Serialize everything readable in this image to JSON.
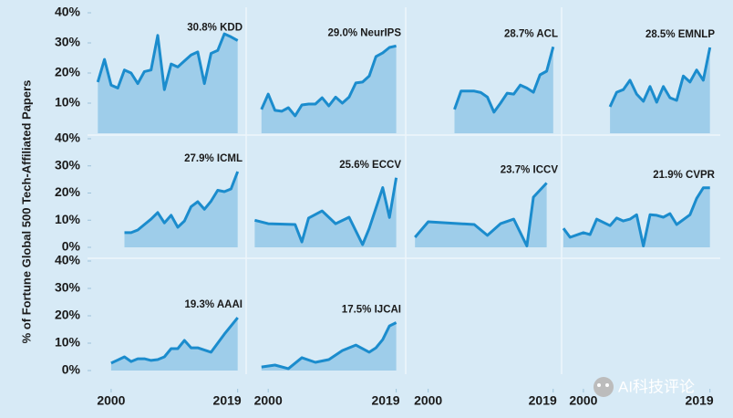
{
  "y_axis_label": "% of Fortune Global 500 Tech-Affiliated Papers",
  "watermark": "AI科技评论",
  "chart_data": [
    {
      "type": "area",
      "title": "30.8% KDD",
      "color": "#1b8ccd",
      "xlim": [
        1997,
        2020
      ],
      "ylim": [
        0,
        40
      ],
      "yticks": [
        {
          "value": 10,
          "label": "10%"
        },
        {
          "value": 20,
          "label": "20%"
        },
        {
          "value": 30,
          "label": "30%"
        },
        {
          "value": 40,
          "label": "40%"
        }
      ],
      "x": [
        1998,
        1999,
        2000,
        2001,
        2002,
        2003,
        2004,
        2005,
        2006,
        2007,
        2008,
        2009,
        2010,
        2011,
        2012,
        2013,
        2014,
        2015,
        2016,
        2017,
        2018,
        2019
      ],
      "values": [
        17,
        24.5,
        16,
        15,
        21,
        20,
        16.5,
        20.5,
        21,
        32.5,
        14.5,
        23,
        22,
        24,
        26,
        27,
        16.5,
        26.5,
        27.5,
        33,
        32,
        30.8
      ]
    },
    {
      "type": "area",
      "title": "29.0% NeurIPS",
      "color": "#1b8ccd",
      "xlim": [
        1997,
        2020
      ],
      "ylim": [
        0,
        40
      ],
      "x": [
        1999,
        2000,
        2001,
        2002,
        2003,
        2004,
        2005,
        2006,
        2007,
        2008,
        2009,
        2010,
        2011,
        2012,
        2013,
        2014,
        2015,
        2016,
        2017,
        2018,
        2019
      ],
      "values": [
        7.9,
        13,
        7.6,
        7.3,
        8.5,
        5.8,
        9.4,
        9.7,
        9.7,
        11.8,
        9.1,
        12,
        10,
        12,
        16.7,
        17,
        19,
        25.5,
        26.7,
        28.5,
        29.0
      ]
    },
    {
      "type": "area",
      "title": "28.7% ACL",
      "color": "#1b8ccd",
      "xlim": [
        1997,
        2020
      ],
      "ylim": [
        0,
        40
      ],
      "x": [
        2004,
        2005,
        2006,
        2007,
        2008,
        2009,
        2010,
        2011,
        2012,
        2013,
        2014,
        2015,
        2016,
        2017,
        2018,
        2019
      ],
      "values": [
        7.9,
        14,
        14,
        14,
        13.5,
        12,
        7,
        10,
        13.3,
        13,
        16,
        15,
        13.6,
        19.4,
        20.6,
        28.7
      ]
    },
    {
      "type": "area",
      "title": "28.5% EMNLP",
      "color": "#1b8ccd",
      "xlim": [
        1997,
        2020
      ],
      "ylim": [
        0,
        40
      ],
      "x": [
        2004,
        2005,
        2006,
        2007,
        2008,
        2009,
        2010,
        2011,
        2012,
        2013,
        2014,
        2015,
        2016,
        2017,
        2018,
        2019
      ],
      "values": [
        8.8,
        13.6,
        14.5,
        17.6,
        13,
        10.6,
        15.5,
        10.3,
        15.5,
        11.8,
        10.9,
        19,
        17,
        21,
        17.6,
        28.5
      ]
    },
    {
      "type": "area",
      "title": "27.9% ICML",
      "color": "#1b8ccd",
      "xlim": [
        1997,
        2020
      ],
      "ylim": [
        0,
        40
      ],
      "yticks": [
        {
          "value": 0,
          "label": "0%"
        },
        {
          "value": 10,
          "label": "10%"
        },
        {
          "value": 20,
          "label": "20%"
        },
        {
          "value": 30,
          "label": "30%"
        },
        {
          "value": 40,
          "label": "40%"
        }
      ],
      "x": [
        2002,
        2003,
        2004,
        2005,
        2006,
        2007,
        2008,
        2009,
        2010,
        2011,
        2012,
        2013,
        2014,
        2015,
        2016,
        2017,
        2018,
        2019
      ],
      "values": [
        5.4,
        5.4,
        6.4,
        8.4,
        10.4,
        12.8,
        9,
        11.8,
        7.4,
        9.7,
        15,
        16.8,
        14,
        17,
        21,
        20.5,
        21.5,
        27.9
      ]
    },
    {
      "type": "area",
      "title": "25.6% ECCV",
      "color": "#1b8ccd",
      "xlim": [
        1997,
        2020
      ],
      "ylim": [
        0,
        40
      ],
      "x": [
        1998,
        2000,
        2004,
        2005,
        2006,
        2008,
        2010,
        2012,
        2014,
        2015,
        2017,
        2018,
        2019
      ],
      "values": [
        10,
        8.7,
        8.4,
        2,
        10.8,
        13.4,
        8.7,
        11.1,
        1,
        7,
        22,
        11,
        25.6
      ]
    },
    {
      "type": "area",
      "title": "23.7% ICCV",
      "color": "#1b8ccd",
      "xlim": [
        1997,
        2020
      ],
      "ylim": [
        0,
        40
      ],
      "xticks": [
        2000,
        2019
      ],
      "x": [
        1998,
        2000,
        2007,
        2009,
        2011,
        2013,
        2015,
        2016,
        2018
      ],
      "values": [
        3.7,
        9.4,
        8.4,
        4.4,
        8.7,
        10.4,
        0.5,
        18.5,
        23.7
      ]
    },
    {
      "type": "area",
      "title": "21.9% CVPR",
      "color": "#1b8ccd",
      "xlim": [
        1997,
        2020
      ],
      "ylim": [
        0,
        40
      ],
      "xticks": [
        2000,
        2019
      ],
      "x": [
        1997,
        1998,
        2000,
        2001,
        2002,
        2004,
        2005,
        2006,
        2007,
        2008,
        2009,
        2010,
        2011,
        2012,
        2013,
        2014,
        2016,
        2017,
        2018,
        2019
      ],
      "values": [
        7,
        3.7,
        5.4,
        4.7,
        10.4,
        8,
        10.8,
        9.7,
        10.4,
        12,
        0.5,
        12,
        11.8,
        11.1,
        12.4,
        8.4,
        12,
        18,
        21.9,
        21.9
      ]
    },
    {
      "type": "area",
      "title": "19.3% AAAI",
      "color": "#1b8ccd",
      "xlim": [
        1997,
        2020
      ],
      "ylim": [
        0,
        40
      ],
      "yticks": [
        {
          "value": 0,
          "label": "0%"
        },
        {
          "value": 10,
          "label": "10%"
        },
        {
          "value": 20,
          "label": "20%"
        },
        {
          "value": 30,
          "label": "30%"
        },
        {
          "value": 40,
          "label": "40%"
        }
      ],
      "xticks": [
        2000,
        2019
      ],
      "x": [
        2000,
        2002,
        2003,
        2004,
        2005,
        2006,
        2007,
        2008,
        2009,
        2010,
        2011,
        2012,
        2013,
        2015,
        2016,
        2017,
        2019
      ],
      "values": [
        2.7,
        5,
        3.3,
        4.3,
        4.3,
        3.7,
        4,
        5,
        8,
        8,
        11,
        8.3,
        8.3,
        6.7,
        10,
        13.3,
        19.3
      ]
    },
    {
      "type": "area",
      "title": "17.5% IJCAI",
      "color": "#1b8ccd",
      "xlim": [
        1997,
        2020
      ],
      "ylim": [
        0,
        40
      ],
      "xticks": [
        2000,
        2019
      ],
      "x": [
        1999,
        2001,
        2003,
        2005,
        2007,
        2009,
        2011,
        2013,
        2015,
        2016,
        2017,
        2018,
        2019
      ],
      "values": [
        1.3,
        2,
        0.7,
        4.7,
        3,
        4,
        7.3,
        9.3,
        6.7,
        8.3,
        11.3,
        16.3,
        17.5
      ]
    }
  ]
}
